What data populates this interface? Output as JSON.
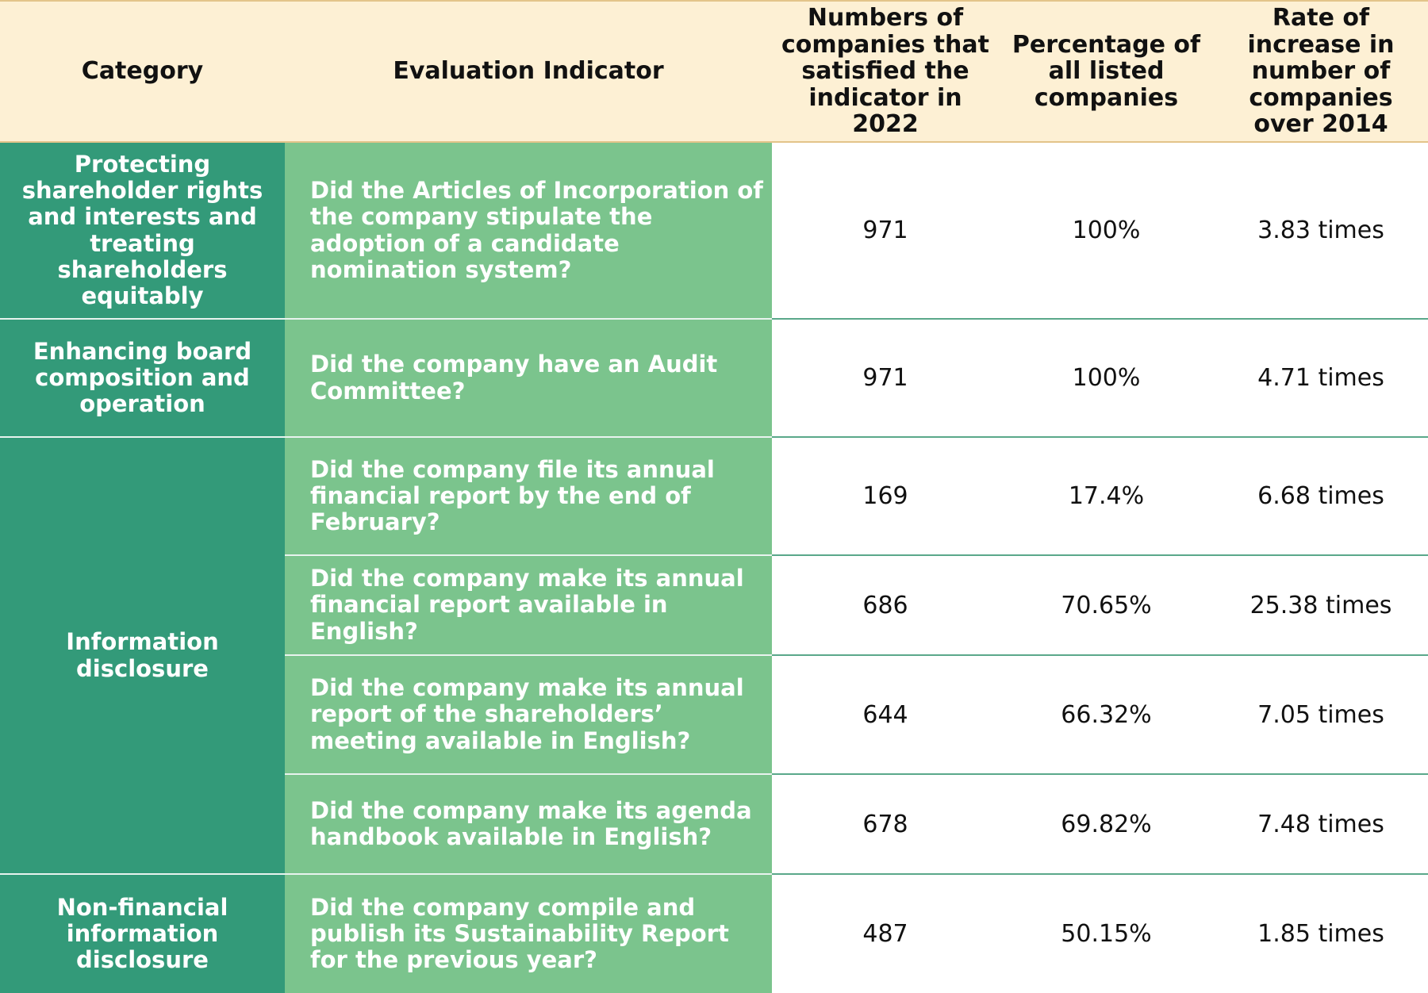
{
  "table": {
    "header": [
      "Category",
      "Evaluation Indicator",
      "Numbers of companies that satisfied the indicator in 2022",
      "Percentage of all listed companies",
      "Rate of increase in number of companies over 2014"
    ],
    "groups": [
      {
        "category": "Protecting shareholder rights and interests and treating shareholders equitably",
        "rows": [
          [
            "Did the Articles of Incorporation of the company stipulate the adoption of a candidate nomination system?",
            "971",
            "100%",
            "3.83 times"
          ]
        ]
      },
      {
        "category": "Enhancing board composition and operation",
        "rows": [
          [
            "Did the company have an Audit Committee?",
            "971",
            "100%",
            "4.71 times"
          ]
        ]
      },
      {
        "category": "Information disclosure",
        "rows": [
          [
            "Did the company file its annual financial report by the end of February?",
            "169",
            "17.4%",
            "6.68 times"
          ],
          [
            "Did the company make its annual financial report available in English?",
            "686",
            "70.65%",
            "25.38 times"
          ],
          [
            "Did the company make its annual report of the shareholders’ meeting available in English?",
            "644",
            "66.32%",
            "7.05 times"
          ],
          [
            "Did the company make its agenda handbook available in English?",
            "678",
            "69.82%",
            "7.48 times"
          ]
        ]
      },
      {
        "category": "Non-financial information disclosure",
        "rows": [
          [
            "Did the company compile and publish its Sustainability Report for the previous year?",
            "487",
            "50.15%",
            "1.85 times"
          ]
        ]
      }
    ]
  }
}
